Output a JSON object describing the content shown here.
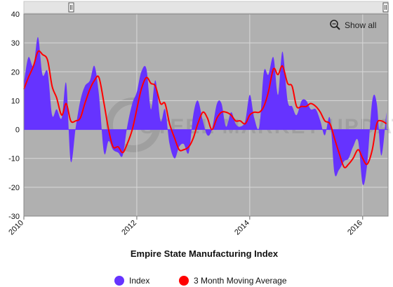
{
  "chart_data": {
    "type": "area",
    "title": "Empire State Manufacturing Index",
    "xlabel": "",
    "ylabel": "",
    "ylim": [
      -30,
      40
    ],
    "xlim": [
      2010.0,
      2016.45
    ],
    "y_ticks": [
      40,
      30,
      20,
      10,
      0,
      -10,
      -20,
      -30
    ],
    "x_ticks": [
      "2010",
      "2012",
      "2014",
      "2016"
    ],
    "x_tick_values": [
      2010,
      2012,
      2014,
      2016
    ],
    "grid": true,
    "legend_position": "bottom",
    "series": [
      {
        "name": "Index",
        "kind": "area",
        "color": "#6633ff",
        "x": [
          2010.0,
          2010.08,
          2010.17,
          2010.25,
          2010.33,
          2010.42,
          2010.5,
          2010.58,
          2010.67,
          2010.75,
          2010.83,
          2010.92,
          2011.0,
          2011.08,
          2011.17,
          2011.25,
          2011.33,
          2011.42,
          2011.5,
          2011.58,
          2011.67,
          2011.75,
          2011.83,
          2011.92,
          2012.0,
          2012.08,
          2012.17,
          2012.25,
          2012.33,
          2012.42,
          2012.5,
          2012.58,
          2012.67,
          2012.75,
          2012.83,
          2012.92,
          2013.0,
          2013.08,
          2013.17,
          2013.25,
          2013.33,
          2013.42,
          2013.5,
          2013.58,
          2013.67,
          2013.75,
          2013.83,
          2013.92,
          2014.0,
          2014.08,
          2014.17,
          2014.25,
          2014.33,
          2014.42,
          2014.5,
          2014.58,
          2014.67,
          2014.75,
          2014.83,
          2014.92,
          2015.0,
          2015.08,
          2015.17,
          2015.25,
          2015.33,
          2015.42,
          2015.5,
          2015.58,
          2015.67,
          2015.75,
          2015.83,
          2015.92,
          2016.0,
          2016.08,
          2016.17,
          2016.25,
          2016.33,
          2016.42
        ],
        "values": [
          16,
          25,
          22,
          32,
          19,
          20,
          5,
          7,
          4,
          16,
          -11,
          1,
          10,
          15,
          17,
          22,
          12,
          -8,
          -4,
          -7,
          -8,
          -9,
          1,
          9,
          13,
          20,
          21,
          7,
          17,
          3,
          7,
          -5,
          -10,
          -6,
          -5,
          -8,
          5,
          10,
          3,
          -2,
          0,
          9,
          9,
          1,
          6,
          2,
          1,
          3,
          12,
          4,
          1,
          20,
          19,
          25,
          12,
          27,
          10,
          8,
          5,
          10,
          10,
          7,
          7,
          3,
          -2,
          4,
          -15,
          -14,
          -11,
          -10,
          -6,
          -4,
          -19,
          -12,
          10,
          9,
          -9,
          6
        ]
      },
      {
        "name": "3 Month Moving Average",
        "kind": "line",
        "color": "#ff0000",
        "x": [
          2010.0,
          2010.08,
          2010.17,
          2010.25,
          2010.33,
          2010.42,
          2010.5,
          2010.58,
          2010.67,
          2010.75,
          2010.83,
          2010.92,
          2011.0,
          2011.08,
          2011.17,
          2011.25,
          2011.33,
          2011.42,
          2011.5,
          2011.58,
          2011.67,
          2011.75,
          2011.83,
          2011.92,
          2012.0,
          2012.08,
          2012.17,
          2012.25,
          2012.33,
          2012.42,
          2012.5,
          2012.58,
          2012.67,
          2012.75,
          2012.83,
          2012.92,
          2013.0,
          2013.08,
          2013.17,
          2013.25,
          2013.33,
          2013.42,
          2013.5,
          2013.58,
          2013.67,
          2013.75,
          2013.83,
          2013.92,
          2014.0,
          2014.08,
          2014.17,
          2014.25,
          2014.33,
          2014.42,
          2014.5,
          2014.58,
          2014.67,
          2014.75,
          2014.83,
          2014.92,
          2015.0,
          2015.08,
          2015.17,
          2015.25,
          2015.33,
          2015.42,
          2015.5,
          2015.58,
          2015.67,
          2015.75,
          2015.83,
          2015.92,
          2016.0,
          2016.08,
          2016.17,
          2016.25,
          2016.33,
          2016.42
        ],
        "values": [
          14,
          18,
          22,
          27,
          26,
          24,
          15,
          11,
          5,
          9,
          3,
          3,
          4,
          9,
          14,
          17,
          18,
          9,
          0,
          -6,
          -6,
          -8,
          -5,
          0,
          7,
          14,
          18,
          16,
          15,
          9,
          9,
          2,
          -3,
          -7,
          -7,
          -6,
          -3,
          2,
          6,
          4,
          0,
          4,
          6,
          6,
          5,
          3,
          3,
          2,
          5,
          6,
          6,
          8,
          13,
          21,
          19,
          22,
          16,
          15,
          8,
          8,
          8,
          9,
          8,
          6,
          3,
          2,
          -3,
          -8,
          -13,
          -12,
          -10,
          -7,
          -10,
          -12,
          -7,
          2,
          3,
          2
        ]
      }
    ]
  },
  "legend": {
    "items": [
      {
        "label": "Index",
        "color": "#6633ff"
      },
      {
        "label": "3 Month Moving Average",
        "color": "#ff0000"
      }
    ]
  },
  "controls": {
    "show_all_label": "Show all",
    "zoom_icon": "magnifier-icon",
    "handle_icon": "drag-handle-icon"
  },
  "colors": {
    "plot_background": "#b0b0b0",
    "grid": "#d8d8d8",
    "navigator": "#e4e4e4"
  }
}
